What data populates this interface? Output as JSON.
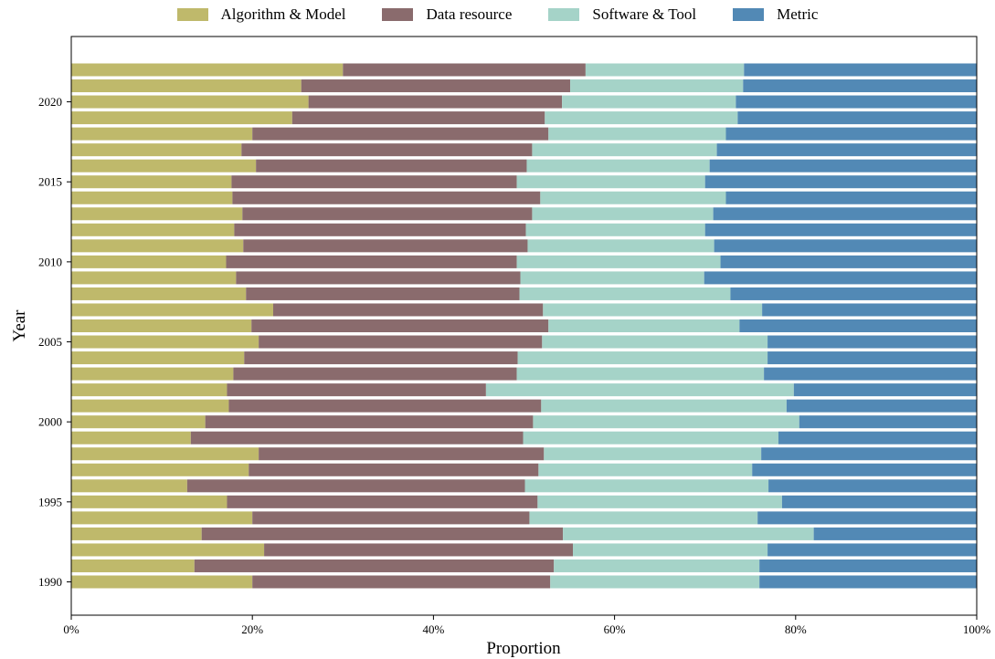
{
  "chart_data": {
    "type": "bar",
    "orientation": "horizontal",
    "stacked": "normalized",
    "xlabel": "Proportion",
    "ylabel": "Year",
    "xlim": [
      0,
      1
    ],
    "x_ticks": [
      "0%",
      "20%",
      "40%",
      "60%",
      "80%",
      "100%"
    ],
    "y_ticks": [
      "1990",
      "1995",
      "2000",
      "2005",
      "2010",
      "2015",
      "2020"
    ],
    "legend_position": "top-center",
    "grid": false,
    "years": [
      1990,
      1991,
      1992,
      1993,
      1994,
      1995,
      1996,
      1997,
      1998,
      1999,
      2000,
      2001,
      2002,
      2003,
      2004,
      2005,
      2006,
      2007,
      2008,
      2009,
      2010,
      2011,
      2012,
      2013,
      2014,
      2015,
      2016,
      2017,
      2018,
      2019,
      2020,
      2021,
      2022
    ],
    "series": [
      {
        "name": "Algorithm & Model",
        "color": "#bfb96b",
        "values": [
          0.2,
          0.136,
          0.213,
          0.144,
          0.2,
          0.172,
          0.128,
          0.196,
          0.207,
          0.132,
          0.148,
          0.174,
          0.172,
          0.179,
          0.191,
          0.207,
          0.199,
          0.223,
          0.193,
          0.182,
          0.171,
          0.19,
          0.18,
          0.189,
          0.178,
          0.177,
          0.204,
          0.188,
          0.2,
          0.244,
          0.262,
          0.254,
          0.3
        ]
      },
      {
        "name": "Data resource",
        "color": "#8a6b6d",
        "values": [
          0.329,
          0.397,
          0.341,
          0.399,
          0.306,
          0.343,
          0.373,
          0.32,
          0.315,
          0.367,
          0.362,
          0.345,
          0.286,
          0.313,
          0.302,
          0.313,
          0.328,
          0.298,
          0.302,
          0.314,
          0.321,
          0.314,
          0.322,
          0.32,
          0.34,
          0.315,
          0.299,
          0.321,
          0.327,
          0.279,
          0.28,
          0.297,
          0.268
        ]
      },
      {
        "name": "Software & Tool",
        "color": "#a5d3c8",
        "values": [
          0.231,
          0.227,
          0.215,
          0.277,
          0.252,
          0.27,
          0.269,
          0.236,
          0.24,
          0.282,
          0.294,
          0.271,
          0.34,
          0.273,
          0.276,
          0.249,
          0.211,
          0.242,
          0.233,
          0.203,
          0.225,
          0.206,
          0.198,
          0.2,
          0.205,
          0.208,
          0.202,
          0.204,
          0.196,
          0.213,
          0.192,
          0.191,
          0.175
        ]
      },
      {
        "name": "Metric",
        "color": "#5289b5",
        "values": [
          0.24,
          0.24,
          0.231,
          0.18,
          0.242,
          0.215,
          0.23,
          0.248,
          0.238,
          0.219,
          0.196,
          0.21,
          0.202,
          0.235,
          0.231,
          0.231,
          0.262,
          0.237,
          0.272,
          0.301,
          0.283,
          0.29,
          0.3,
          0.291,
          0.277,
          0.3,
          0.295,
          0.287,
          0.277,
          0.264,
          0.266,
          0.258,
          0.257
        ]
      }
    ]
  }
}
